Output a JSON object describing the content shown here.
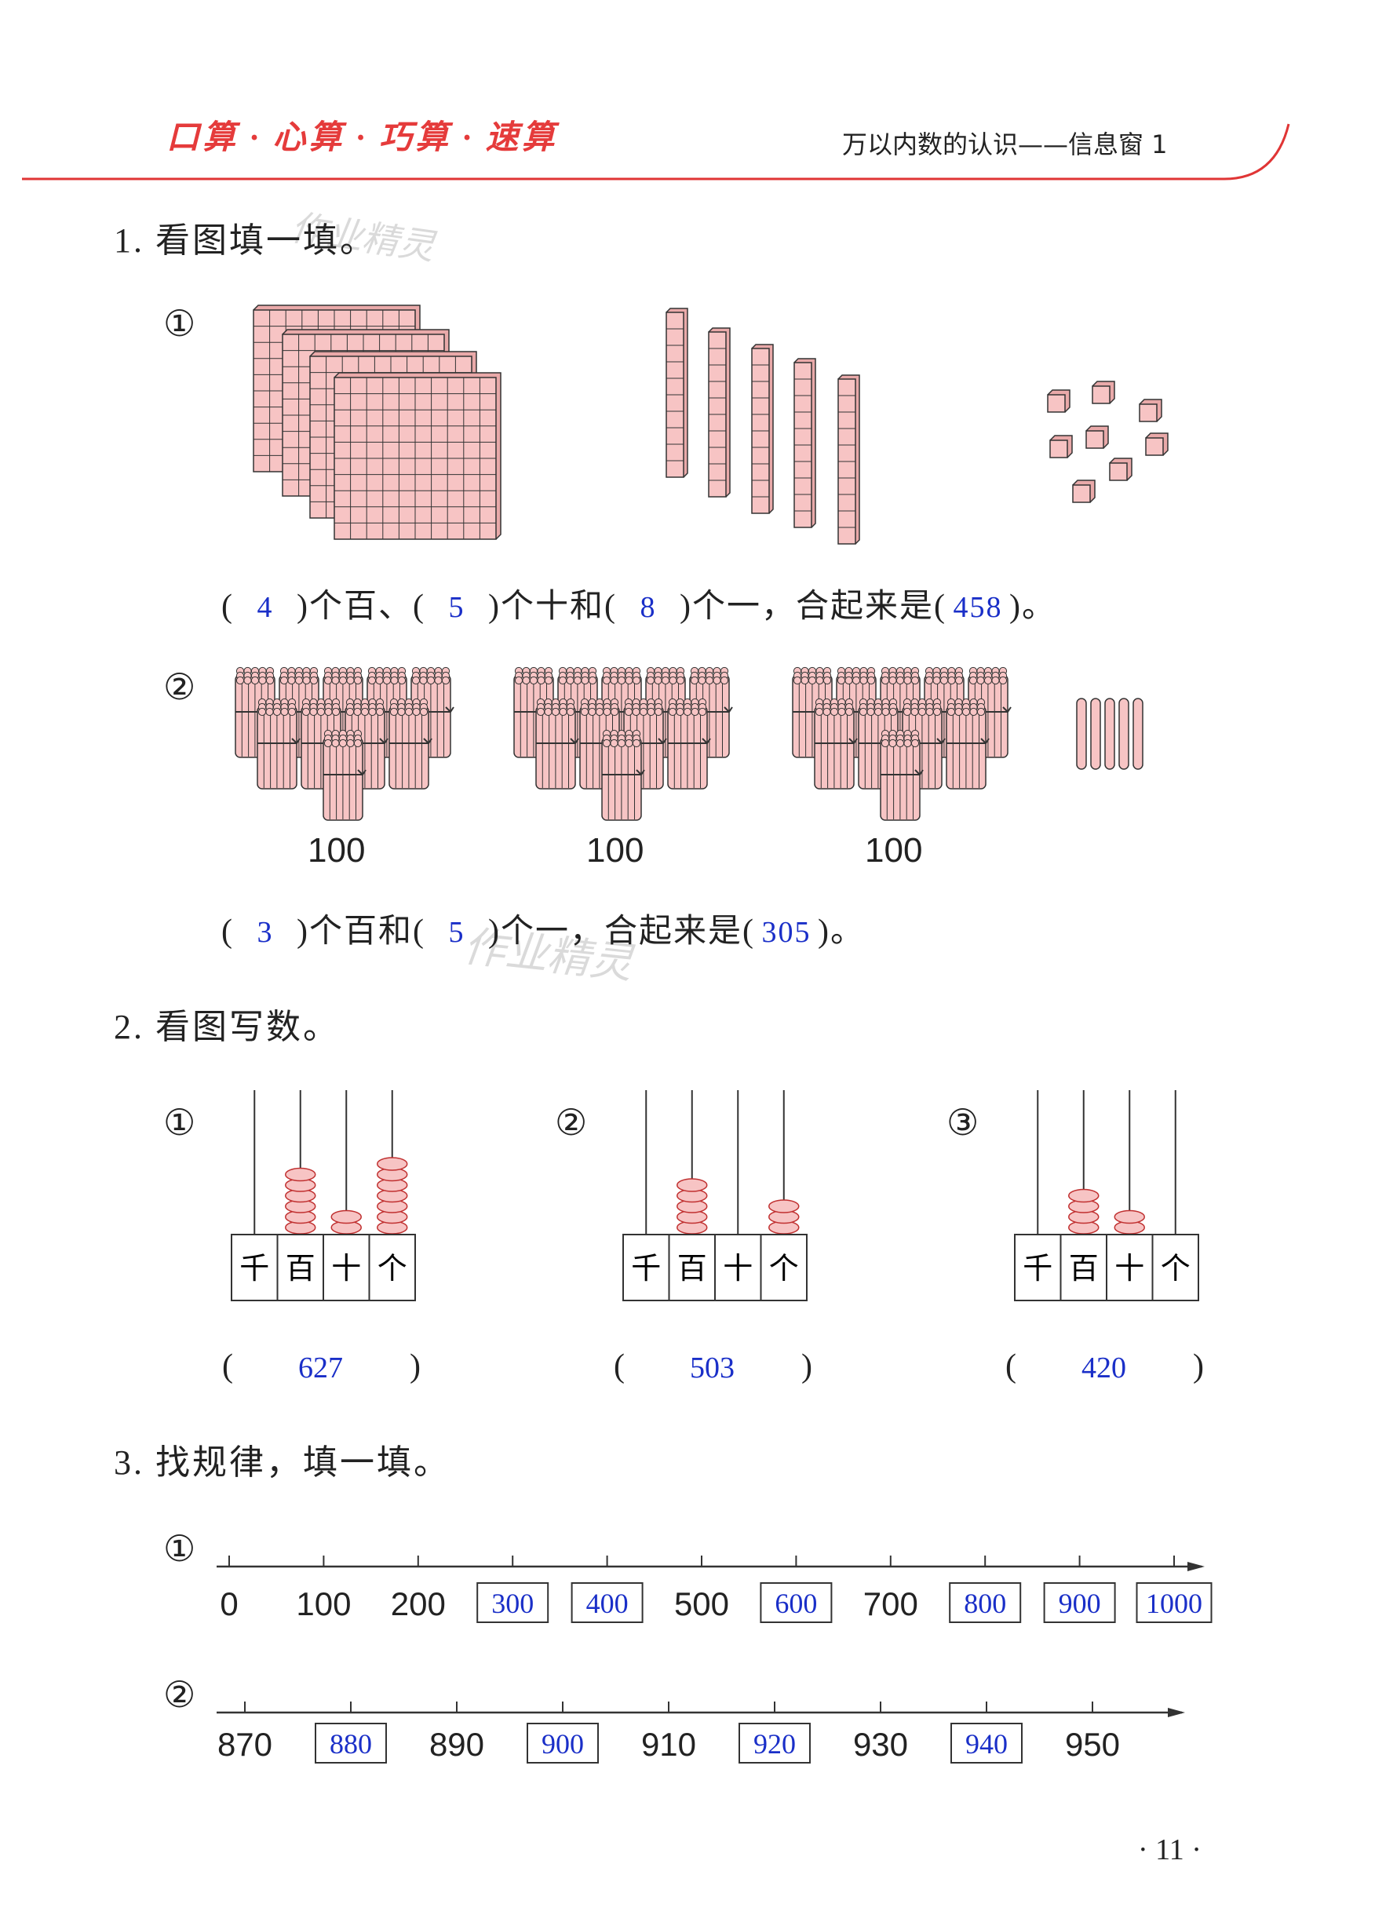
{
  "header": {
    "left": "口算 · 心算 · 巧算 · 速算",
    "right": "万以内数的认识——信息窗 1"
  },
  "watermark": "作业精灵",
  "q1": {
    "title": "1. 看图填一填。",
    "part1": {
      "marker": "①",
      "sentence": [
        {
          "text": "("
        },
        {
          "answer": "4"
        },
        {
          "text": ")个百、("
        },
        {
          "answer": "5"
        },
        {
          "text": ")个十和("
        },
        {
          "answer": "8"
        },
        {
          "text": ")个一，合起来是("
        },
        {
          "answer": "458"
        },
        {
          "text": ")。"
        }
      ]
    },
    "part2": {
      "marker": "②",
      "group_labels": [
        "100",
        "100",
        "100"
      ],
      "sentence": [
        {
          "text": "("
        },
        {
          "answer": "3"
        },
        {
          "text": ")个百和("
        },
        {
          "answer": "5"
        },
        {
          "text": ")个一，合起来是("
        },
        {
          "answer": "305"
        },
        {
          "text": ")。"
        }
      ]
    }
  },
  "q2": {
    "title": "2. 看图写数。",
    "place_labels": [
      "千",
      "百",
      "十",
      "个"
    ],
    "items": [
      {
        "marker": "①",
        "open": "(",
        "answer": "627",
        "close": ")"
      },
      {
        "marker": "②",
        "open": "(",
        "answer": "503",
        "close": ")"
      },
      {
        "marker": "③",
        "open": "(",
        "answer": "420",
        "close": ")"
      }
    ]
  },
  "q3": {
    "title": "3. 找规律，填一填。",
    "lines": [
      {
        "marker": "①",
        "labels": [
          {
            "text": "0"
          },
          {
            "text": "100"
          },
          {
            "text": "200"
          },
          {
            "answer": "300"
          },
          {
            "answer": "400"
          },
          {
            "text": "500"
          },
          {
            "answer": "600"
          },
          {
            "text": "700"
          },
          {
            "answer": "800"
          },
          {
            "answer": "900"
          },
          {
            "answer": "1000"
          }
        ]
      },
      {
        "marker": "②",
        "labels": [
          {
            "text": "870"
          },
          {
            "answer": "880"
          },
          {
            "text": "890"
          },
          {
            "answer": "900"
          },
          {
            "text": "910"
          },
          {
            "answer": "920"
          },
          {
            "text": "930"
          },
          {
            "answer": "940"
          },
          {
            "text": "950"
          }
        ]
      }
    ]
  },
  "page_number": "· 11 ·"
}
